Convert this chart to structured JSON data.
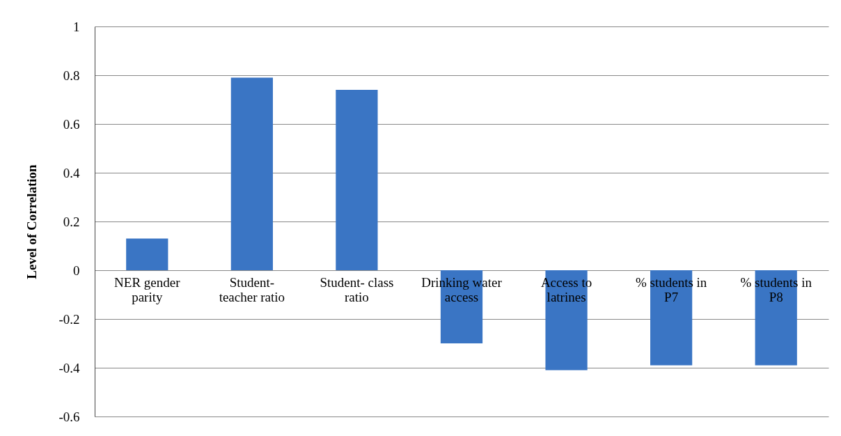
{
  "chart_data": {
    "type": "bar",
    "ylabel": "Level of Correlation",
    "categories": [
      "NER gender parity",
      "Student- teacher ratio",
      "Student- class ratio",
      "Drinking water access",
      "Access to latrines",
      "% students in P7",
      "% students in P8"
    ],
    "values": [
      0.13,
      0.79,
      0.74,
      -0.3,
      -0.41,
      -0.39,
      -0.39
    ],
    "color": "#3a75c4",
    "ylim": [
      -0.6,
      1
    ],
    "yticks": [
      -0.6,
      -0.4,
      -0.2,
      0,
      0.2,
      0.4,
      0.6,
      0.8,
      1
    ],
    "grid": "y"
  }
}
